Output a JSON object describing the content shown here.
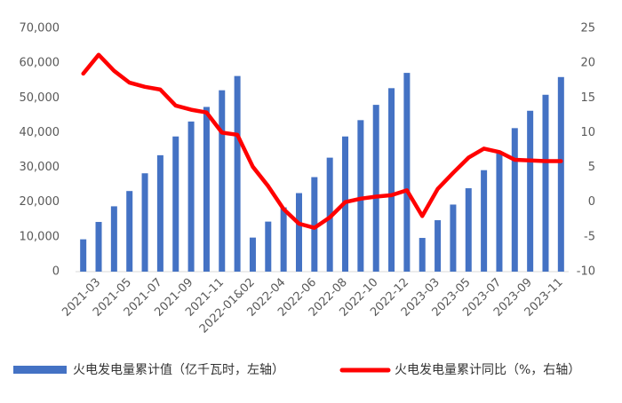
{
  "chart_data": {
    "type": "bar-line",
    "categories": [
      null,
      "2021-03",
      null,
      "2021-05",
      null,
      "2021-07",
      null,
      "2021-09",
      null,
      "2021-11",
      null,
      "2022-01&02",
      null,
      "2022-04",
      null,
      "2022-06",
      null,
      "2022-08",
      null,
      "2022-10",
      null,
      "2022-12",
      null,
      "2023-03",
      null,
      "2023-05",
      null,
      "2023-07",
      null,
      "2023-09",
      null,
      "2023-11"
    ],
    "series": [
      {
        "name": "火电发电量累计值（亿千瓦时，左轴）",
        "color": "#4472c4",
        "type": "bar",
        "values": [
          9300,
          14300,
          18800,
          23200,
          28300,
          33500,
          38900,
          43200,
          47400,
          52200,
          56300,
          9800,
          14400,
          18500,
          22600,
          27200,
          32800,
          38900,
          43600,
          48000,
          52800,
          57200,
          9700,
          14800,
          19300,
          24000,
          29200,
          34000,
          41300,
          46300,
          50900,
          56000
        ]
      },
      {
        "name": "火电发电量累计同比（%，右轴）",
        "color": "#ff0000",
        "type": "line",
        "axis": "y2",
        "values": [
          18.5,
          21.2,
          18.9,
          17.2,
          16.6,
          16.2,
          13.9,
          13.3,
          12.9,
          10,
          9.7,
          5.1,
          2.3,
          -1,
          -3.1,
          -3.7,
          -2.2,
          0,
          0.5,
          0.8,
          1,
          1.7,
          -2,
          1.9,
          4.2,
          6.4,
          7.7,
          7.2,
          6.1,
          6,
          5.9,
          5.9
        ]
      }
    ],
    "ylim": [
      0,
      70000
    ],
    "yticks": [
      0,
      {
        "value": 10000,
        "label": "10,000"
      },
      {
        "value": 20000,
        "label": "20,000"
      },
      {
        "value": 30000,
        "label": "30,000"
      },
      {
        "value": 40000,
        "label": "40,000"
      },
      {
        "value": 50000,
        "label": "50,000"
      },
      {
        "value": 60000,
        "label": "60,000"
      },
      {
        "value": 70000,
        "label": "70,000"
      }
    ],
    "y2lim": [
      -10,
      25
    ],
    "y2ticks": [
      -10,
      -5,
      0,
      5,
      10,
      15,
      20,
      25
    ],
    "legend": "bottom"
  }
}
